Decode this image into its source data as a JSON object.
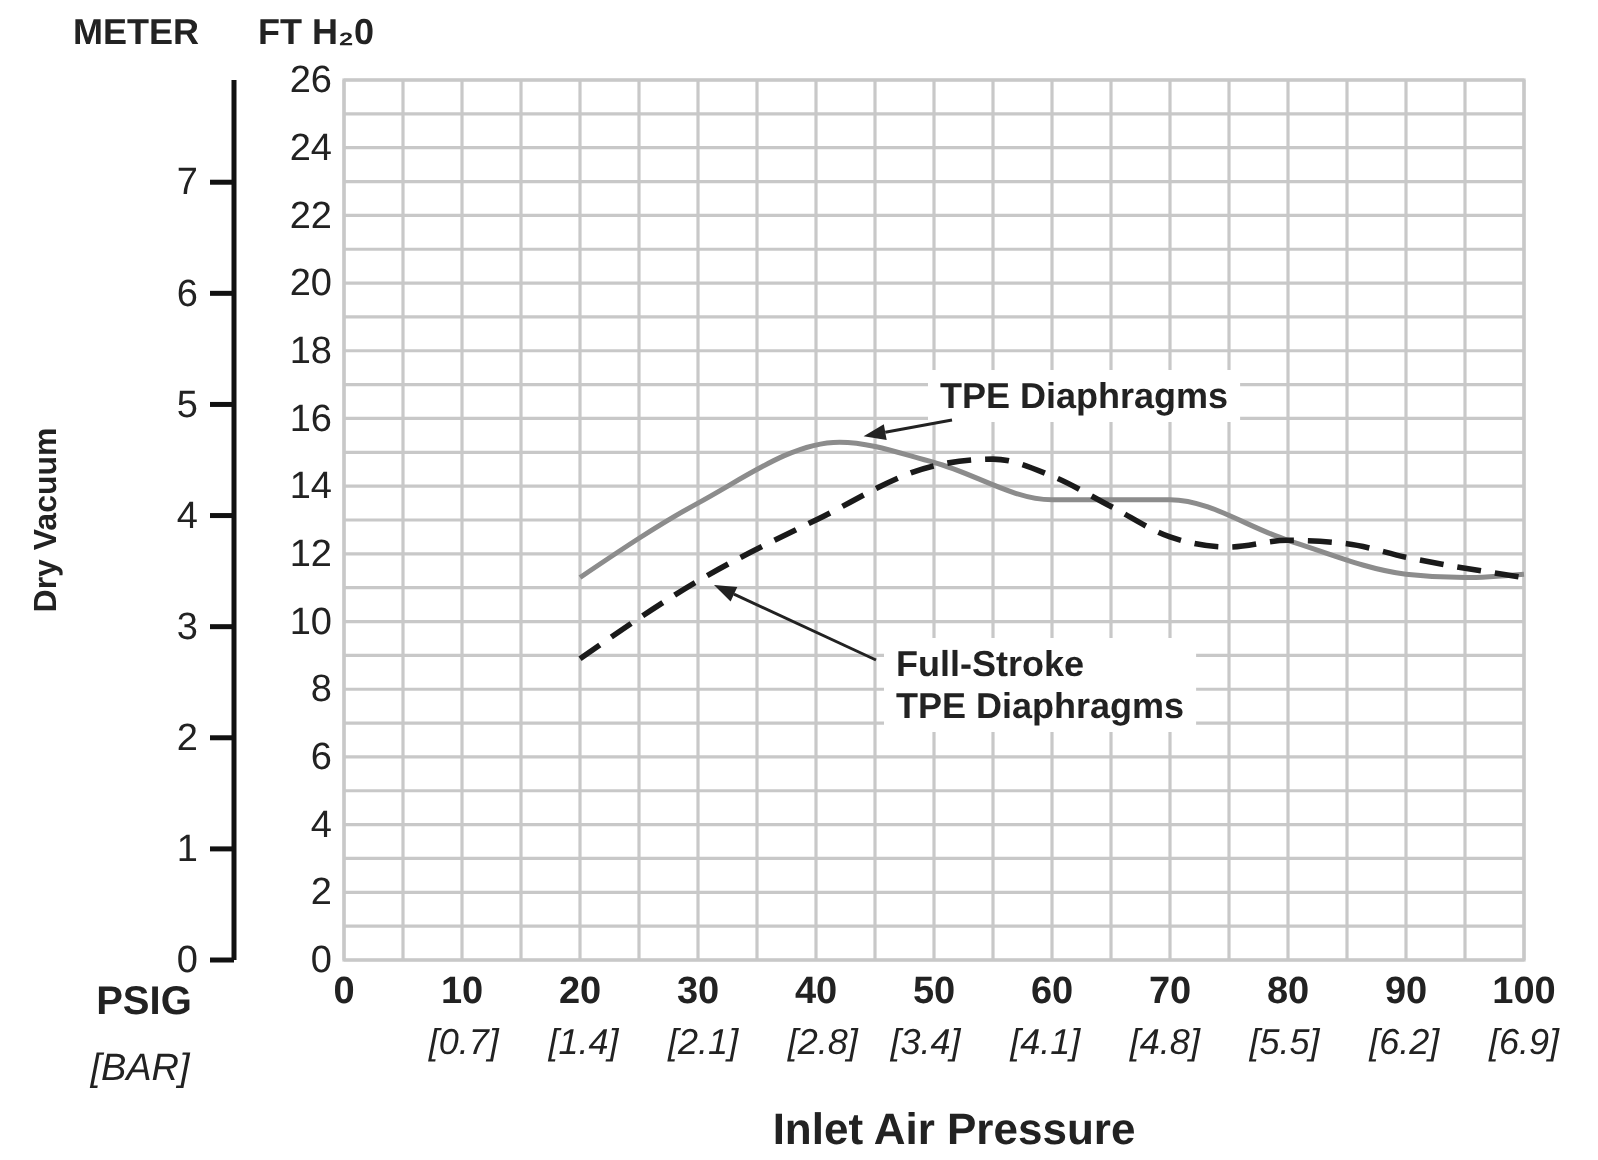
{
  "chart_data": {
    "type": "line",
    "xlabel": "Inlet Air Pressure",
    "ylabel": "FT H₂0",
    "y2label": "METER",
    "x2label": "[BAR]",
    "annotations": [
      "Dry Vacuum",
      "PSIG"
    ],
    "xlim": [
      0,
      100
    ],
    "xticks": [
      0,
      {
        "value": 5,
        "label": null
      },
      10,
      {
        "value": 15,
        "label": null
      },
      20,
      {
        "value": 25,
        "label": null
      },
      30,
      {
        "value": 35,
        "label": null
      },
      40,
      {
        "value": 45,
        "label": null
      },
      50,
      {
        "value": 55,
        "label": null
      },
      60,
      {
        "value": 65,
        "label": null
      },
      70,
      {
        "value": 75,
        "label": null
      },
      80,
      {
        "value": 85,
        "label": null
      },
      90,
      {
        "value": 95,
        "label": null
      },
      100
    ],
    "x2lim": [
      0,
      6.9
    ],
    "x2ticks": [
      {
        "value": 0.7,
        "label": "[0.7]"
      },
      {
        "value": 1.4,
        "label": "[1.4]"
      },
      {
        "value": 2.1,
        "label": "[2.1]"
      },
      {
        "value": 2.8,
        "label": "[2.8]"
      },
      {
        "value": 3.4,
        "label": "[3.4]"
      },
      {
        "value": 4.1,
        "label": "[4.1]"
      },
      {
        "value": 4.8,
        "label": "[4.8]"
      },
      {
        "value": 5.5,
        "label": "[5.5]"
      },
      {
        "value": 6.2,
        "label": "[6.2]"
      },
      {
        "value": 6.9,
        "label": "[6.9]"
      }
    ],
    "ylim": [
      0,
      26
    ],
    "yticks": [
      0,
      {
        "value": 1,
        "label": null
      },
      2,
      {
        "value": 3,
        "label": null
      },
      4,
      {
        "value": 5,
        "label": null
      },
      6,
      {
        "value": 7,
        "label": null
      },
      8,
      {
        "value": 9,
        "label": null
      },
      10,
      {
        "value": 11,
        "label": null
      },
      12,
      {
        "value": 13,
        "label": null
      },
      14,
      {
        "value": 15,
        "label": null
      },
      16,
      {
        "value": 17,
        "label": null
      },
      18,
      {
        "value": 19,
        "label": null
      },
      20,
      {
        "value": 21,
        "label": null
      },
      22,
      {
        "value": 23,
        "label": null
      },
      24,
      {
        "value": 25,
        "label": null
      },
      26
    ],
    "y2lim": [
      0,
      7.92
    ],
    "y2ticks": [
      0,
      1,
      2,
      3,
      4,
      5,
      6,
      7
    ],
    "grid": true,
    "legend": false,
    "series": [
      {
        "name": "TPE Diaphragms",
        "color": "#8c8c8c",
        "line_style": "solid",
        "x": [
          20,
          30,
          42,
          50,
          60,
          70,
          80,
          90,
          95,
          100
        ],
        "values": [
          11.3,
          13.5,
          15.3,
          14.7,
          13.6,
          13.6,
          12.4,
          11.4,
          11.3,
          11.4
        ]
      },
      {
        "name": "Full-Stroke TPE Diaphragms",
        "color": "#1a1a1a",
        "line_style": "dashed",
        "x": [
          20,
          30,
          40,
          50,
          55,
          60,
          65,
          70,
          75,
          80,
          85,
          90,
          100
        ],
        "values": [
          8.9,
          11.2,
          13.0,
          14.6,
          14.8,
          14.3,
          13.4,
          12.5,
          12.2,
          12.4,
          12.3,
          11.9,
          11.3
        ]
      }
    ]
  }
}
